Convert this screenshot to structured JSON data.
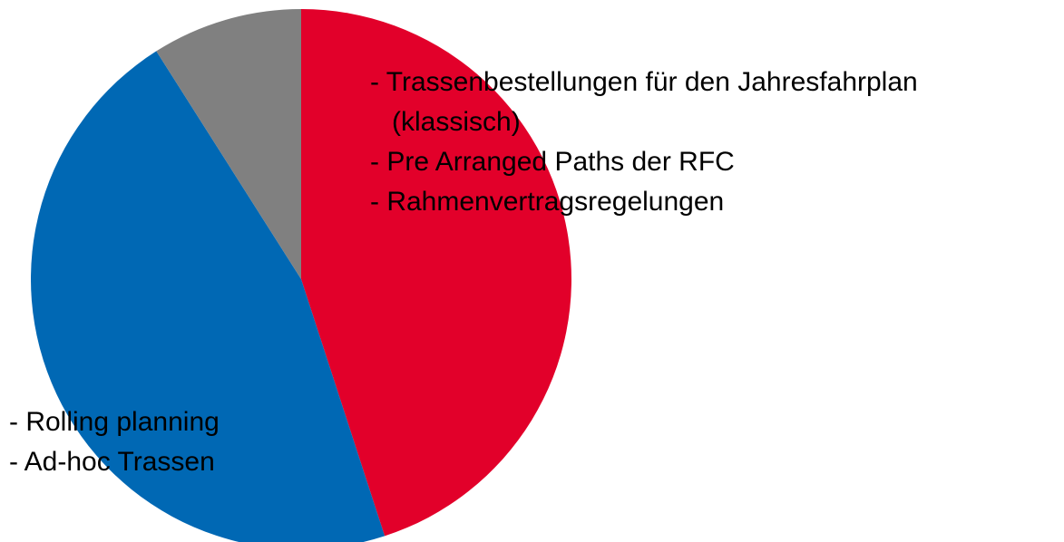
{
  "chart_data": {
    "type": "pie",
    "values": [
      45,
      46,
      9
    ],
    "colors": [
      "#e2002a",
      "#0068b4",
      "#808080"
    ],
    "labels": [
      [
        "- Trassenbestellungen für den Jahresfahrplan",
        "(klassisch)",
        "- Pre Arranged Paths der RFC",
        "- Rahmenvertragsregelungen"
      ],
      [
        "- Rolling planning",
        "- Ad-hoc Trassen"
      ],
      null
    ]
  }
}
